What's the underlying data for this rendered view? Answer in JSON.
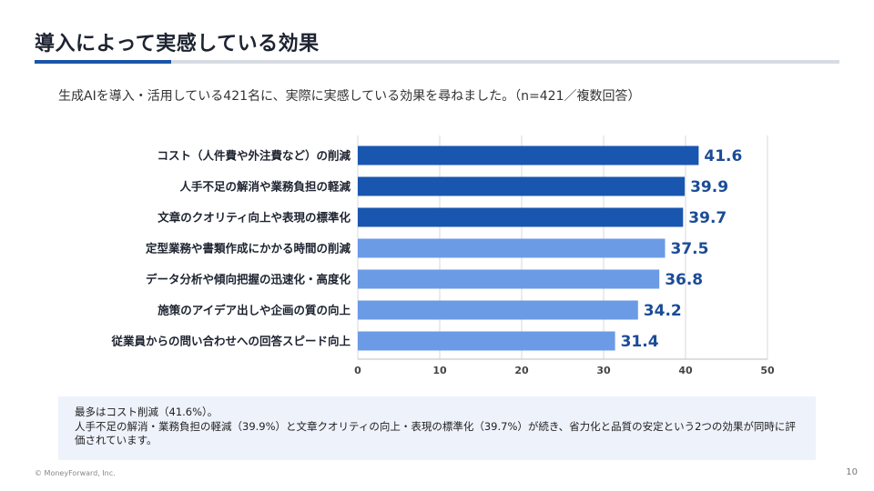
{
  "header": {
    "title": "導入によって実感している効果",
    "subtitle": "生成AIを導入・活用している421名に、実際に実感している効果を尋ねました。（n=421／複数回答）"
  },
  "colors": {
    "dark_bar": "#1956b0",
    "light_bar": "#6c9be6",
    "value_text": "#1b4c97",
    "accent": "#1b55a8"
  },
  "chart_data": {
    "type": "bar",
    "orientation": "horizontal",
    "title": "",
    "xlabel": "",
    "ylabel": "",
    "categories": [
      "コスト（人件費や外注費など）の削減",
      "人手不足の解消や業務負担の軽減",
      "文章のクオリティ向上や表現の標準化",
      "定型業務や書類作成にかかる時間の削減",
      "データ分析や傾向把握の迅速化・高度化",
      "施策のアイデア出しや企画の質の向上",
      "従業員からの問い合わせへの回答スピード向上"
    ],
    "values": [
      41.6,
      39.9,
      39.7,
      37.5,
      36.8,
      34.2,
      31.4
    ],
    "value_labels": [
      "41.6",
      "39.9",
      "39.7",
      "37.5",
      "36.8",
      "34.2",
      "31.4"
    ],
    "highlight_top_n": 3,
    "xlim": [
      0,
      50
    ],
    "xticks": [
      "0",
      "10",
      "20",
      "30",
      "40",
      "50"
    ],
    "grid": true
  },
  "note": {
    "line1": "最多はコスト削減（41.6%）。",
    "line2": "人手不足の解消・業務負担の軽減（39.9%）と文章クオリティの向上・表現の標準化（39.7%）が続き、省力化と品質の安定という2つの効果が同時に評価されています。"
  },
  "footer": {
    "copyright": "© MoneyForward, Inc.",
    "page": "10"
  }
}
